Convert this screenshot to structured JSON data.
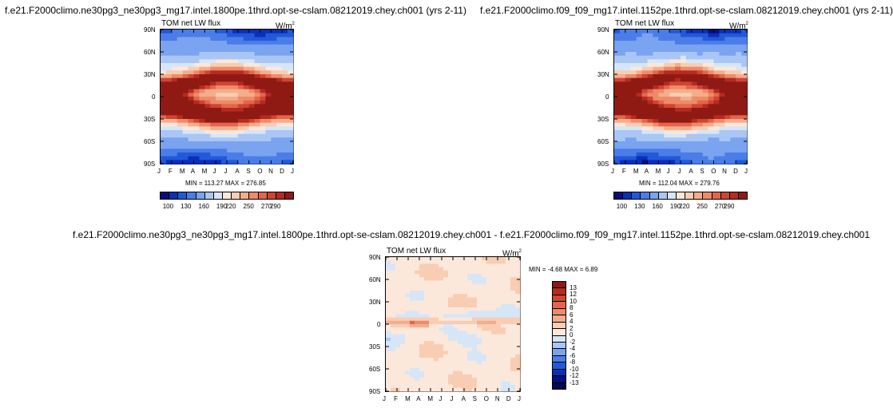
{
  "chart_data": [
    {
      "type": "heatmap",
      "title": "f.e21.F2000climo.ne30pg3_ne30pg3_mg17.intel.1800pe.1thrd.opt-se-cslam.08212019.chey.ch001 (yrs 2-11)",
      "field_label": "TOM net LW flux",
      "units": "W/m",
      "units_sup": "2",
      "x_ticks": [
        "J",
        "F",
        "M",
        "A",
        "M",
        "J",
        "J",
        "A",
        "S",
        "O",
        "N",
        "D",
        "J"
      ],
      "y_ticks": [
        "90N",
        "60N",
        "30N",
        "0",
        "30S",
        "60S",
        "90S"
      ],
      "min_max": "MIN = 113.27   MAX = 276.85",
      "min": 113.27,
      "max": 276.85,
      "colorbar_labels": [
        "100",
        "130",
        "160",
        "190",
        "220",
        "250",
        "270",
        "290"
      ],
      "colorbar_colors": [
        "#05107a",
        "#0a2fb8",
        "#2358d8",
        "#4a7de8",
        "#7aa3f0",
        "#a9c6f5",
        "#d7e6f7",
        "#fbe8db",
        "#f8cdb3",
        "#f4ad8c",
        "#ee8b68",
        "#e4664a",
        "#d04432",
        "#b52a22",
        "#8f1a14"
      ]
    },
    {
      "type": "heatmap",
      "title": "f.e21.F2000climo.f09_f09_mg17.intel.1152pe.1thrd.opt-se-cslam.08212019.chey.ch001 (yrs 2-11)",
      "field_label": "TOM net LW flux",
      "units": "W/m",
      "units_sup": "2",
      "x_ticks": [
        "J",
        "F",
        "M",
        "A",
        "M",
        "J",
        "J",
        "A",
        "S",
        "O",
        "N",
        "D",
        "J"
      ],
      "y_ticks": [
        "90N",
        "60N",
        "30N",
        "0",
        "30S",
        "60S",
        "90S"
      ],
      "min_max": "MIN = 112.04   MAX = 279.76",
      "min": 112.04,
      "max": 279.76,
      "colorbar_labels": [
        "100",
        "130",
        "160",
        "190",
        "220",
        "250",
        "270",
        "290"
      ],
      "colorbar_colors": [
        "#05107a",
        "#0a2fb8",
        "#2358d8",
        "#4a7de8",
        "#7aa3f0",
        "#a9c6f5",
        "#d7e6f7",
        "#fbe8db",
        "#f8cdb3",
        "#f4ad8c",
        "#ee8b68",
        "#e4664a",
        "#d04432",
        "#b52a22",
        "#8f1a14"
      ]
    },
    {
      "type": "heatmap",
      "title": "f.e21.F2000climo.ne30pg3_ne30pg3_mg17.intel.1800pe.1thrd.opt-se-cslam.08212019.chey.ch001 - f.e21.F2000climo.f09_f09_mg17.intel.1152pe.1thrd.opt-se-cslam.08212019.chey.ch001",
      "field_label": "TOM net LW flux",
      "units": "W/m",
      "units_sup": "2",
      "x_ticks": [
        "J",
        "F",
        "M",
        "A",
        "M",
        "J",
        "J",
        "A",
        "S",
        "O",
        "N",
        "D",
        "J"
      ],
      "y_ticks": [
        "90N",
        "60N",
        "30N",
        "0",
        "30S",
        "60S",
        "90S"
      ],
      "min_max": "MIN =  -4.68  MAX =   6.89",
      "min": -4.68,
      "max": 6.89,
      "colorbar_labels": [
        "13",
        "12",
        "10",
        "8",
        "6",
        "4",
        "2",
        "0",
        "-2",
        "-4",
        "-6",
        "-8",
        "-10",
        "-12",
        "-13"
      ],
      "colorbar_colors": [
        "#8f1a14",
        "#b52a22",
        "#d04432",
        "#e4664a",
        "#ee8b68",
        "#f4ad8c",
        "#f8cdb3",
        "#fbe8db",
        "#d7e6f7",
        "#a9c6f5",
        "#7aa3f0",
        "#4a7de8",
        "#2358d8",
        "#0a2fb8",
        "#05107a",
        "#020a55"
      ]
    }
  ]
}
